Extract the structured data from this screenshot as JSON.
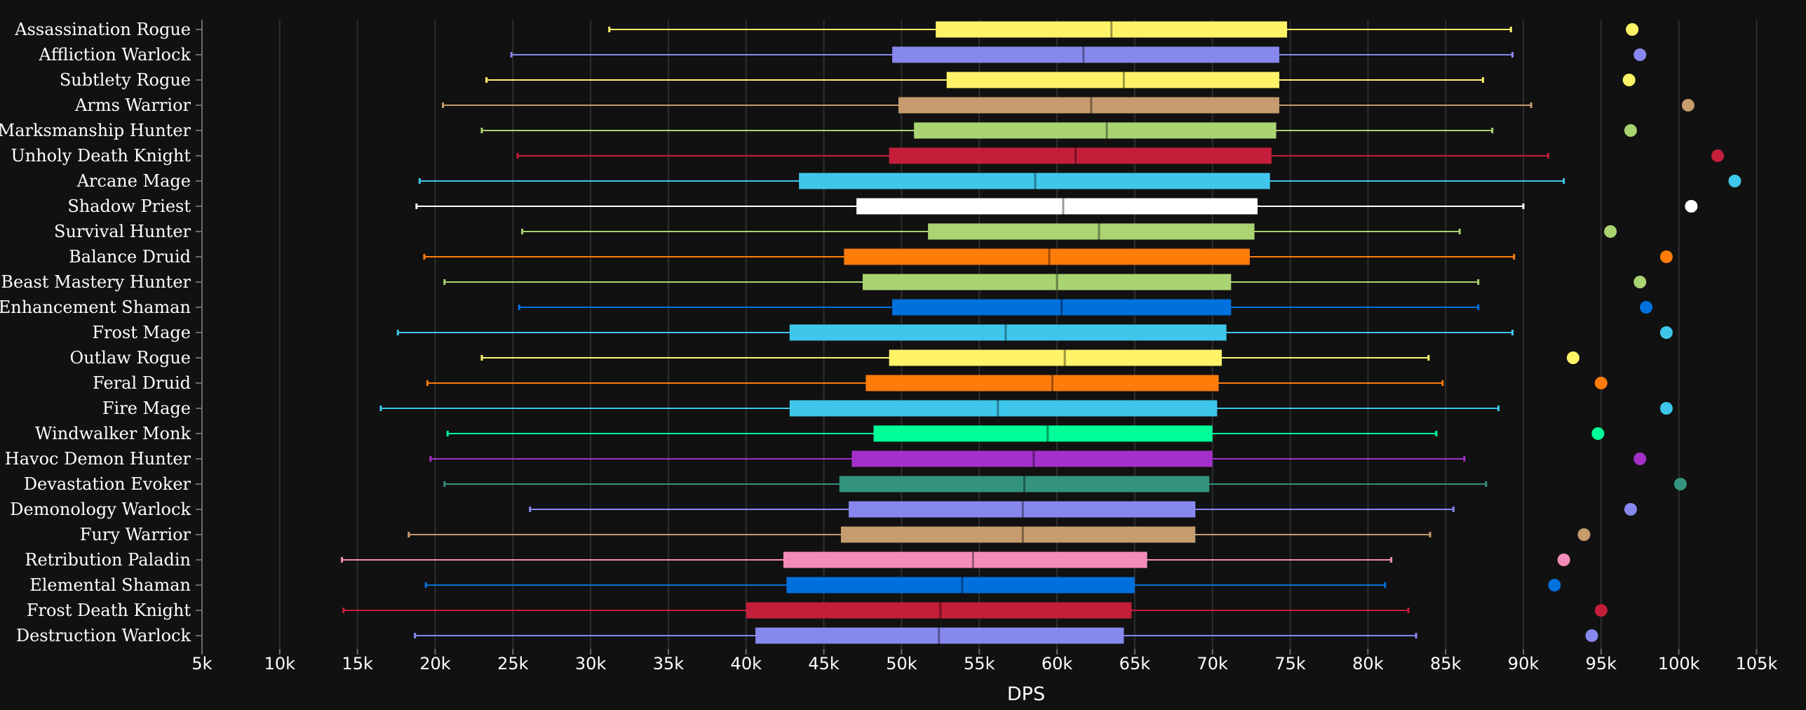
{
  "chart_data": {
    "type": "box",
    "xlabel": "DPS",
    "xlim": [
      5000,
      106500
    ],
    "xticks": [
      5000,
      10000,
      15000,
      20000,
      25000,
      30000,
      35000,
      40000,
      45000,
      50000,
      55000,
      60000,
      65000,
      70000,
      75000,
      80000,
      85000,
      90000,
      95000,
      100000,
      105000
    ],
    "xtick_labels": [
      "5k",
      "10k",
      "15k",
      "20k",
      "25k",
      "30k",
      "35k",
      "40k",
      "45k",
      "50k",
      "55k",
      "60k",
      "65k",
      "70k",
      "75k",
      "80k",
      "85k",
      "90k",
      "95k",
      "100k",
      "105k"
    ],
    "grid": "vertical",
    "series": [
      {
        "name": "Assassination Rogue",
        "color": "#FFF468",
        "min": 31200,
        "q1": 52200,
        "median": 63500,
        "q3": 74800,
        "max": 89200,
        "outlier": 97000
      },
      {
        "name": "Affliction Warlock",
        "color": "#8788EE",
        "min": 24900,
        "q1": 49400,
        "median": 61700,
        "q3": 74300,
        "max": 89300,
        "outlier": 97500
      },
      {
        "name": "Subtlety Rogue",
        "color": "#FFF468",
        "min": 23300,
        "q1": 52900,
        "median": 64300,
        "q3": 74300,
        "max": 87400,
        "outlier": 96800
      },
      {
        "name": "Arms Warrior",
        "color": "#C69B6D",
        "min": 20500,
        "q1": 49800,
        "median": 62200,
        "q3": 74300,
        "max": 90500,
        "outlier": 100600
      },
      {
        "name": "Marksmanship Hunter",
        "color": "#AAD372",
        "min": 23000,
        "q1": 50800,
        "median": 63200,
        "q3": 74100,
        "max": 88000,
        "outlier": 96900
      },
      {
        "name": "Unholy Death Knight",
        "color": "#C41E3A",
        "min": 25300,
        "q1": 49200,
        "median": 61200,
        "q3": 73800,
        "max": 91600,
        "outlier": 102500
      },
      {
        "name": "Arcane Mage",
        "color": "#3FC7EB",
        "min": 19000,
        "q1": 43400,
        "median": 58600,
        "q3": 73700,
        "max": 92600,
        "outlier": 103600
      },
      {
        "name": "Shadow Priest",
        "color": "#FFFFFF",
        "min": 18800,
        "q1": 47100,
        "median": 60400,
        "q3": 72900,
        "max": 90000,
        "outlier": 100800
      },
      {
        "name": "Survival Hunter",
        "color": "#AAD372",
        "min": 25600,
        "q1": 51700,
        "median": 62700,
        "q3": 72700,
        "max": 85900,
        "outlier": 95600
      },
      {
        "name": "Balance Druid",
        "color": "#FF7C0A",
        "min": 19300,
        "q1": 46300,
        "median": 59500,
        "q3": 72400,
        "max": 89400,
        "outlier": 99200
      },
      {
        "name": "Beast Mastery Hunter",
        "color": "#AAD372",
        "min": 20600,
        "q1": 47500,
        "median": 60000,
        "q3": 71200,
        "max": 87100,
        "outlier": 97500
      },
      {
        "name": "Enhancement Shaman",
        "color": "#0070DD",
        "min": 25400,
        "q1": 49400,
        "median": 60300,
        "q3": 71200,
        "max": 87100,
        "outlier": 97900
      },
      {
        "name": "Frost Mage",
        "color": "#3FC7EB",
        "min": 17600,
        "q1": 42800,
        "median": 56700,
        "q3": 70900,
        "max": 89300,
        "outlier": 99200
      },
      {
        "name": "Outlaw Rogue",
        "color": "#FFF468",
        "min": 23000,
        "q1": 49200,
        "median": 60500,
        "q3": 70600,
        "max": 83900,
        "outlier": 93200
      },
      {
        "name": "Feral Druid",
        "color": "#FF7C0A",
        "min": 19500,
        "q1": 47700,
        "median": 59700,
        "q3": 70400,
        "max": 84800,
        "outlier": 95000
      },
      {
        "name": "Fire Mage",
        "color": "#3FC7EB",
        "min": 16500,
        "q1": 42800,
        "median": 56200,
        "q3": 70300,
        "max": 88400,
        "outlier": 99200
      },
      {
        "name": "Windwalker Monk",
        "color": "#00FF98",
        "min": 20800,
        "q1": 48200,
        "median": 59400,
        "q3": 70000,
        "max": 84400,
        "outlier": 94800
      },
      {
        "name": "Havoc Demon Hunter",
        "color": "#A330C9",
        "min": 19700,
        "q1": 46800,
        "median": 58500,
        "q3": 70000,
        "max": 86200,
        "outlier": 97500
      },
      {
        "name": "Devastation Evoker",
        "color": "#33937F",
        "min": 20600,
        "q1": 46000,
        "median": 57900,
        "q3": 69800,
        "max": 87600,
        "outlier": 100100
      },
      {
        "name": "Demonology Warlock",
        "color": "#8788EE",
        "min": 26100,
        "q1": 46600,
        "median": 57800,
        "q3": 68900,
        "max": 85500,
        "outlier": 96900
      },
      {
        "name": "Fury Warrior",
        "color": "#C69B6D",
        "min": 18300,
        "q1": 46100,
        "median": 57800,
        "q3": 68900,
        "max": 84000,
        "outlier": 93900
      },
      {
        "name": "Retribution Paladin",
        "color": "#F48CBA",
        "min": 14000,
        "q1": 42400,
        "median": 54600,
        "q3": 65800,
        "max": 81500,
        "outlier": 92600
      },
      {
        "name": "Elemental Shaman",
        "color": "#0070DD",
        "min": 19400,
        "q1": 42600,
        "median": 53900,
        "q3": 65000,
        "max": 81100,
        "outlier": 92000
      },
      {
        "name": "Frost Death Knight",
        "color": "#C41E3A",
        "min": 14100,
        "q1": 40000,
        "median": 52500,
        "q3": 64800,
        "max": 82600,
        "outlier": 95000
      },
      {
        "name": "Destruction Warlock",
        "color": "#8788EE",
        "min": 18700,
        "q1": 40600,
        "median": 52400,
        "q3": 64300,
        "max": 83100,
        "outlier": 94400
      }
    ]
  }
}
